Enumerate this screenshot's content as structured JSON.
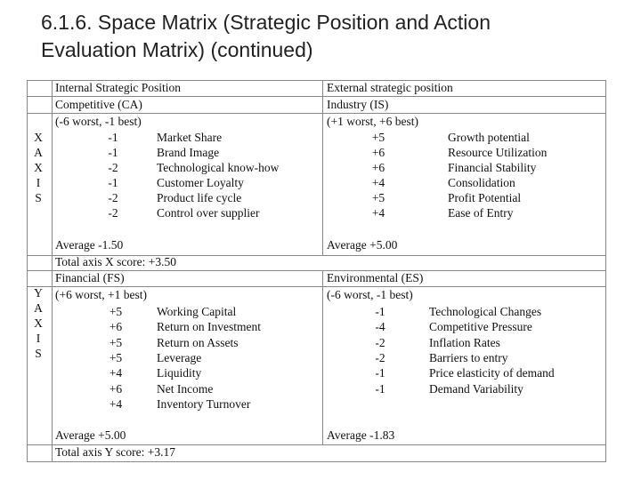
{
  "header": {
    "title": "6.1.6. Space Matrix (Strategic Position and Action Evaluation Matrix) (continued)"
  },
  "x_axis": {
    "letters": [
      "X",
      "A",
      "X",
      "I",
      "S"
    ],
    "internal_heading": "Internal Strategic Position",
    "external_heading": "External strategic position",
    "left": {
      "factor": "Competitive (CA)",
      "scale": "(-6 worst, -1 best)",
      "items": [
        {
          "score": "-1",
          "label": "Market Share"
        },
        {
          "score": "-1",
          "label": "Brand Image"
        },
        {
          "score": "-2",
          "label": "Technological know-how"
        },
        {
          "score": "-1",
          "label": "Customer Loyalty"
        },
        {
          "score": "-2",
          "label": "Product life cycle"
        },
        {
          "score": "-2",
          "label": "Control over supplier"
        }
      ],
      "average": "Average -1.50"
    },
    "right": {
      "factor": "Industry (IS)",
      "scale": "(+1 worst, +6 best)",
      "items": [
        {
          "score": "+5",
          "label": "Growth potential"
        },
        {
          "score": "+6",
          "label": "Resource Utilization"
        },
        {
          "score": "+6",
          "label": "Financial Stability"
        },
        {
          "score": "+4",
          "label": "Consolidation"
        },
        {
          "score": "+5",
          "label": "Profit Potential"
        },
        {
          "score": "+4",
          "label": "Ease of Entry"
        }
      ],
      "average": "Average +5.00"
    },
    "total": "Total axis X score: +3.50"
  },
  "y_axis": {
    "letters": [
      "Y",
      "A",
      "X",
      "I",
      "S"
    ],
    "left": {
      "factor": "Financial (FS)",
      "scale": "(+6 worst, +1 best)",
      "items": [
        {
          "score": "+5",
          "label": "Working Capital"
        },
        {
          "score": "+6",
          "label": "Return on Investment"
        },
        {
          "score": "+5",
          "label": "Return on Assets"
        },
        {
          "score": "+5",
          "label": "Leverage"
        },
        {
          "score": "+4",
          "label": "Liquidity"
        },
        {
          "score": "+6",
          "label": "Net Income"
        },
        {
          "score": "+4",
          "label": "Inventory Turnover"
        }
      ],
      "average": "Average +5.00"
    },
    "right": {
      "factor": "Environmental (ES)",
      "scale": "(-6 worst, -1 best)",
      "items": [
        {
          "score": "-1",
          "label": "Technological Changes"
        },
        {
          "score": "-4",
          "label": "Competitive Pressure"
        },
        {
          "score": "-2",
          "label": "Inflation Rates"
        },
        {
          "score": "-2",
          "label": "Barriers to entry"
        },
        {
          "score": "-1",
          "label": "Price elasticity of demand"
        },
        {
          "score": "-1",
          "label": "Demand Variability"
        }
      ],
      "average": "Average -1.83"
    },
    "total": "Total axis Y score: +3.17"
  }
}
